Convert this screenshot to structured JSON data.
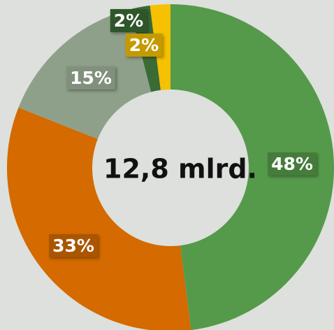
{
  "chart_data": {
    "type": "donut",
    "center_label": "12,8 mlrd.",
    "categories": [
      null,
      null,
      null,
      null,
      null
    ],
    "values": [
      48,
      33,
      15,
      2,
      2
    ],
    "value_labels": [
      "48%",
      "33%",
      "15%",
      "2%",
      "2%"
    ],
    "colors": [
      "#559a4a",
      "#d46a00",
      "#8fa08a",
      "#3a6b35",
      "#f5c100"
    ]
  }
}
